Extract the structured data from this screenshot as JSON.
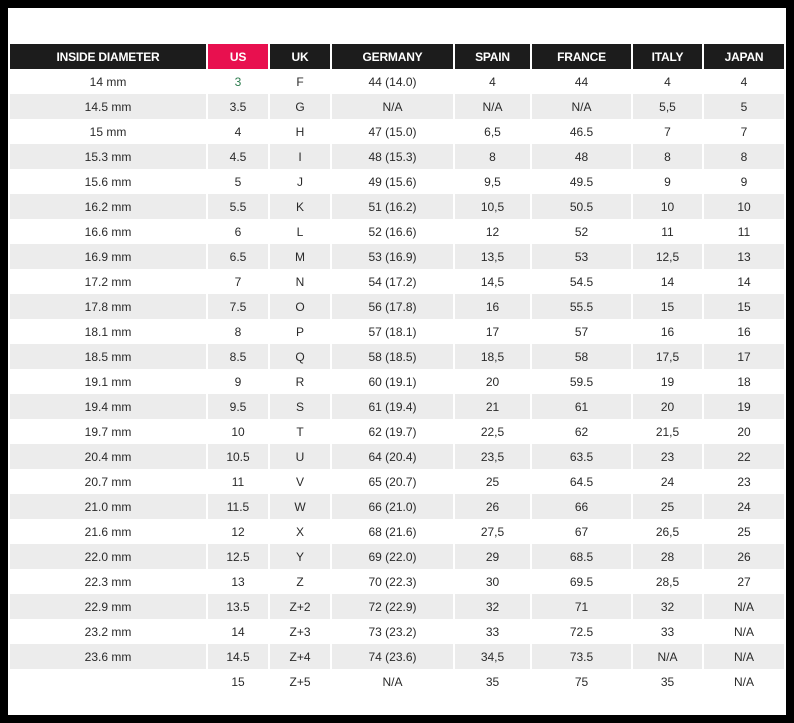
{
  "columns": [
    "INSIDE DIAMETER",
    "US",
    "UK",
    "GERMANY",
    "SPAIN",
    "FRANCE",
    "ITALY",
    "JAPAN"
  ],
  "highlight_column": "US",
  "colors": {
    "header_bg": "#1c1c1c",
    "highlight_bg": "#e8104f",
    "stripe_bg": "#ececec",
    "frame": "#000000"
  },
  "rows": [
    [
      "14 mm",
      "3",
      "F",
      "44 (14.0)",
      "4",
      "44",
      "4",
      "4"
    ],
    [
      "14.5 mm",
      "3.5",
      "G",
      "N/A",
      "N/A",
      "N/A",
      "5,5",
      "5"
    ],
    [
      "15 mm",
      "4",
      "H",
      "47 (15.0)",
      "6,5",
      "46.5",
      "7",
      "7"
    ],
    [
      "15.3 mm",
      "4.5",
      "I",
      "48 (15.3)",
      "8",
      "48",
      "8",
      "8"
    ],
    [
      "15.6 mm",
      "5",
      "J",
      "49 (15.6)",
      "9,5",
      "49.5",
      "9",
      "9"
    ],
    [
      "16.2 mm",
      "5.5",
      "K",
      "51 (16.2)",
      "10,5",
      "50.5",
      "10",
      "10"
    ],
    [
      "16.6 mm",
      "6",
      "L",
      "52 (16.6)",
      "12",
      "52",
      "11",
      "11"
    ],
    [
      "16.9 mm",
      "6.5",
      "M",
      "53 (16.9)",
      "13,5",
      "53",
      "12,5",
      "13"
    ],
    [
      "17.2 mm",
      "7",
      "N",
      "54 (17.2)",
      "14,5",
      "54.5",
      "14",
      "14"
    ],
    [
      "17.8 mm",
      "7.5",
      "O",
      "56 (17.8)",
      "16",
      "55.5",
      "15",
      "15"
    ],
    [
      "18.1 mm",
      "8",
      "P",
      "57 (18.1)",
      "17",
      "57",
      "16",
      "16"
    ],
    [
      "18.5 mm",
      "8.5",
      "Q",
      "58 (18.5)",
      "18,5",
      "58",
      "17,5",
      "17"
    ],
    [
      "19.1 mm",
      "9",
      "R",
      "60 (19.1)",
      "20",
      "59.5",
      "19",
      "18"
    ],
    [
      "19.4 mm",
      "9.5",
      "S",
      "61 (19.4)",
      "21",
      "61",
      "20",
      "19"
    ],
    [
      "19.7 mm",
      "10",
      "T",
      "62 (19.7)",
      "22,5",
      "62",
      "21,5",
      "20"
    ],
    [
      "20.4 mm",
      "10.5",
      "U",
      "64 (20.4)",
      "23,5",
      "63.5",
      "23",
      "22"
    ],
    [
      "20.7 mm",
      "11",
      "V",
      "65 (20.7)",
      "25",
      "64.5",
      "24",
      "23"
    ],
    [
      "21.0 mm",
      "11.5",
      "W",
      "66 (21.0)",
      "26",
      "66",
      "25",
      "24"
    ],
    [
      "21.6 mm",
      "12",
      "X",
      "68 (21.6)",
      "27,5",
      "67",
      "26,5",
      "25"
    ],
    [
      "22.0 mm",
      "12.5",
      "Y",
      "69 (22.0)",
      "29",
      "68.5",
      "28",
      "26"
    ],
    [
      "22.3 mm",
      "13",
      "Z",
      "70 (22.3)",
      "30",
      "69.5",
      "28,5",
      "27"
    ],
    [
      "22.9 mm",
      "13.5",
      "Z+2",
      "72 (22.9)",
      "32",
      "71",
      "32",
      "N/A"
    ],
    [
      "23.2 mm",
      "14",
      "Z+3",
      "73 (23.2)",
      "33",
      "72.5",
      "33",
      "N/A"
    ],
    [
      "23.6 mm",
      "14.5",
      "Z+4",
      "74 (23.6)",
      "34,5",
      "73.5",
      "N/A",
      "N/A"
    ],
    [
      "",
      "15",
      "Z+5",
      "N/A",
      "35",
      "75",
      "35",
      "N/A"
    ]
  ]
}
